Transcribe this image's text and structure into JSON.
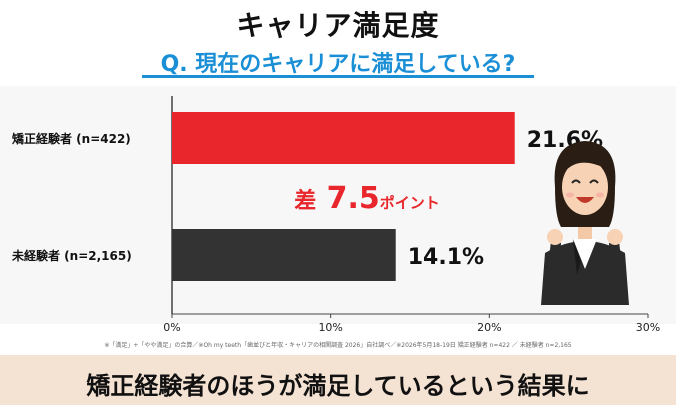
{
  "header": {
    "title": "キャリア満足度",
    "question": "Q. 現在のキャリアに満足している?"
  },
  "chart_data": {
    "type": "bar",
    "orientation": "horizontal",
    "categories": [
      "矯正経験者 (n=422)",
      "未経験者 (n=2,165)"
    ],
    "values": [
      21.6,
      14.1
    ],
    "value_labels": [
      "21.6%",
      "14.1%"
    ],
    "colors": [
      "#e8262b",
      "#333333"
    ],
    "xlim": [
      0,
      30
    ],
    "xticks": [
      "0%",
      "10%",
      "20%",
      "30%"
    ],
    "grid": false,
    "annotation": {
      "prefix": "差",
      "value": "7.5",
      "suffix": "ポイント",
      "color": "#e8262b"
    }
  },
  "footnote": "※「満足」+「やや満足」の合算／※Oh my teeth「歯並びと年収・キャリアの相関調査 2026」自社調べ／※2026年5月18-19日 矯正経験者 n=422 ／ 未経験者 n=2,165",
  "banner": {
    "text": "矯正経験者のほうが満足しているという結果に",
    "color": "#f4e2d3"
  },
  "illustration": {
    "icon": "businesswoman-cheering-icon"
  }
}
